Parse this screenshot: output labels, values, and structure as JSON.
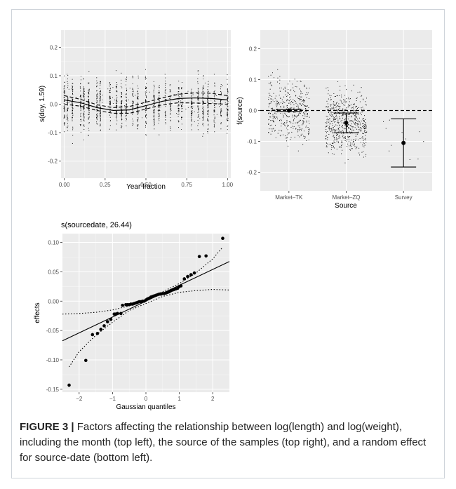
{
  "caption": {
    "label": "FIGURE 3 |",
    "text": " Factors affecting the relationship between log(length) and log(weight), including the month (top left), the source of the samples (top right), and a random effect for source-date (bottom left)."
  },
  "chart_data": [
    {
      "id": "doy",
      "type": "line",
      "title": "",
      "xlabel": "Year fraction",
      "ylabel": "s(doy, 1.59)",
      "xlim": [
        -0.02,
        1.02
      ],
      "ylim": [
        -0.26,
        0.26
      ],
      "xticks": [
        0.0,
        0.25,
        0.5,
        0.75,
        1.0
      ],
      "xtick_labels": [
        "0.00",
        "0.25",
        "0.50",
        "0.75",
        "1.00"
      ],
      "yticks": [
        -0.2,
        -0.1,
        0.0,
        0.1,
        0.2
      ],
      "ytick_labels": [
        "-0.2",
        "-0.1",
        "0.0",
        "0.1",
        "0.2"
      ],
      "grid": true,
      "smooth": {
        "x": [
          0,
          0.1,
          0.2,
          0.3,
          0.4,
          0.5,
          0.6,
          0.7,
          0.8,
          0.9,
          1.0
        ],
        "y": [
          0.015,
          0.005,
          -0.012,
          -0.022,
          -0.02,
          -0.005,
          0.01,
          0.02,
          0.022,
          0.02,
          0.015
        ],
        "upper": [
          0.03,
          0.017,
          -0.002,
          -0.012,
          -0.008,
          0.007,
          0.022,
          0.035,
          0.04,
          0.038,
          0.03
        ],
        "lower": [
          0.0,
          -0.007,
          -0.022,
          -0.032,
          -0.032,
          -0.017,
          -0.002,
          0.005,
          0.004,
          0.002,
          0.0
        ]
      },
      "residual_columns_x": [
        0.0,
        0.02,
        0.05,
        0.1,
        0.12,
        0.15,
        0.2,
        0.22,
        0.28,
        0.32,
        0.35,
        0.38,
        0.42,
        0.45,
        0.5,
        0.55,
        0.58,
        0.62,
        0.65,
        0.7,
        0.72,
        0.78,
        0.82,
        0.85,
        0.88,
        0.92,
        0.96,
        1.0
      ],
      "residual_range": [
        -0.24,
        0.24
      ]
    },
    {
      "id": "source",
      "type": "scatter",
      "title": "",
      "xlabel": "Source",
      "ylabel": "f(source)",
      "categories": [
        "Market–TK",
        "Market–ZQ",
        "Survey"
      ],
      "ylim": [
        -0.26,
        0.26
      ],
      "yticks": [
        -0.2,
        -0.1,
        0.0,
        0.1,
        0.2
      ],
      "ytick_labels": [
        "-0.2",
        "-0.1",
        "0.0",
        "0.1",
        "0.2"
      ],
      "grid": true,
      "reference_line": 0.0,
      "effects": [
        {
          "category": "Market–TK",
          "estimate": 0.0,
          "lower": -0.003,
          "upper": 0.003
        },
        {
          "category": "Market–ZQ",
          "estimate": -0.04,
          "lower": -0.072,
          "upper": -0.008
        },
        {
          "category": "Survey",
          "estimate": -0.105,
          "lower": -0.183,
          "upper": -0.027
        }
      ],
      "residual_counts": [
        420,
        600,
        12
      ]
    },
    {
      "id": "sourcedate",
      "type": "scatter",
      "title": "s(sourcedate, 26.44)",
      "xlabel": "Gaussian quantiles",
      "ylabel": "effects",
      "xlim": [
        -2.5,
        2.5
      ],
      "ylim": [
        -0.155,
        0.115
      ],
      "xticks": [
        -2,
        -1,
        0,
        1,
        2
      ],
      "xtick_labels": [
        "−2",
        "−1",
        "0",
        "1",
        "2"
      ],
      "yticks": [
        -0.15,
        -0.1,
        -0.05,
        0.0,
        0.05,
        0.1
      ],
      "ytick_labels": [
        "-0.15",
        "-0.10",
        "-0.05",
        "0.00",
        "0.05",
        "0.10"
      ],
      "grid": true,
      "points": {
        "x": [
          -2.3,
          -1.8,
          -1.6,
          -1.45,
          -1.35,
          -1.25,
          -1.15,
          -1.05,
          -0.95,
          -0.9,
          -0.85,
          -0.75,
          -0.7,
          -0.6,
          -0.55,
          -0.5,
          -0.45,
          -0.4,
          -0.35,
          -0.3,
          -0.25,
          -0.2,
          -0.15,
          -0.1,
          -0.05,
          0.0,
          0.05,
          0.1,
          0.15,
          0.2,
          0.25,
          0.3,
          0.35,
          0.4,
          0.45,
          0.5,
          0.55,
          0.6,
          0.65,
          0.7,
          0.75,
          0.8,
          0.85,
          0.9,
          0.95,
          1.0,
          1.05,
          1.15,
          1.25,
          1.35,
          1.45,
          1.6,
          1.8,
          2.3
        ],
        "y": [
          -0.143,
          -0.101,
          -0.057,
          -0.055,
          -0.048,
          -0.042,
          -0.035,
          -0.031,
          -0.022,
          -0.022,
          -0.021,
          -0.021,
          -0.007,
          -0.006,
          -0.006,
          -0.006,
          -0.005,
          -0.005,
          -0.004,
          -0.003,
          -0.002,
          -0.001,
          -0.001,
          0.0,
          0.0,
          0.002,
          0.004,
          0.005,
          0.007,
          0.008,
          0.009,
          0.01,
          0.011,
          0.012,
          0.012,
          0.013,
          0.013,
          0.014,
          0.015,
          0.016,
          0.018,
          0.019,
          0.02,
          0.021,
          0.022,
          0.025,
          0.026,
          0.038,
          0.042,
          0.045,
          0.048,
          0.076,
          0.077,
          0.107
        ]
      },
      "reference_line": {
        "intercept": 0.0,
        "slope": 0.027
      },
      "upper_band": {
        "x": [
          -2.5,
          -2.0,
          -1.5,
          -1.0,
          -0.5,
          0.0,
          0.5,
          1.0,
          1.5,
          2.0,
          2.3
        ],
        "y": [
          -0.022,
          -0.021,
          -0.019,
          -0.015,
          -0.008,
          0.004,
          0.016,
          0.03,
          0.048,
          0.072,
          0.092
        ]
      },
      "lower_band": {
        "x": [
          -2.3,
          -2.0,
          -1.5,
          -1.0,
          -0.5,
          0.0,
          0.5,
          1.0,
          1.5,
          2.0,
          2.5
        ],
        "y": [
          -0.112,
          -0.086,
          -0.058,
          -0.036,
          -0.016,
          -0.004,
          0.008,
          0.015,
          0.018,
          0.02,
          0.019
        ]
      }
    }
  ]
}
